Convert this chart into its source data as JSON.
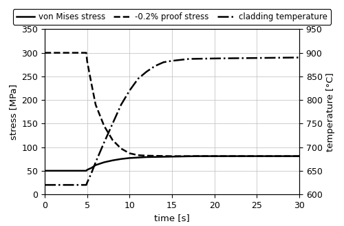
{
  "title": "",
  "xlabel": "time [s]",
  "ylabel_left": "stress [MPa]",
  "ylabel_right": "temperature [°C]",
  "xlim": [
    0,
    30
  ],
  "ylim_left": [
    0,
    350
  ],
  "ylim_right": [
    600,
    950
  ],
  "xticks": [
    0,
    5,
    10,
    15,
    20,
    25,
    30
  ],
  "yticks_left": [
    0,
    50,
    100,
    150,
    200,
    250,
    300,
    350
  ],
  "yticks_right": [
    600,
    650,
    700,
    750,
    800,
    850,
    900,
    950
  ],
  "legend_labels": [
    "von Mises stress",
    "-0.2% proof stress",
    "cladding temperature"
  ],
  "von_mises_x": [
    0,
    4.9,
    5.0,
    5.5,
    6.0,
    7.0,
    8.0,
    9.0,
    10.0,
    12.0,
    15.0,
    18.0,
    20.0,
    25.0,
    30.0
  ],
  "von_mises_y": [
    50,
    50,
    52,
    56,
    62,
    68,
    72,
    75,
    77,
    79,
    80,
    81,
    81,
    81,
    81
  ],
  "proof_stress_x": [
    0,
    4.9,
    5.0,
    5.5,
    6.0,
    7.0,
    8.0,
    9.0,
    10.0,
    11.0,
    12.0,
    15.0,
    18.0,
    20.0,
    25.0,
    30.0
  ],
  "proof_stress_y": [
    300,
    300,
    282,
    235,
    190,
    145,
    115,
    97,
    87,
    83,
    82,
    81,
    81,
    81,
    81,
    81
  ],
  "clad_temp_x": [
    0,
    4.9,
    5.0,
    5.5,
    6.0,
    7.0,
    8.0,
    9.0,
    10.0,
    11.0,
    12.0,
    13.0,
    14.0,
    15.0,
    17.0,
    20.0,
    25.0,
    30.0
  ],
  "clad_temp_y": [
    620,
    620,
    625,
    645,
    668,
    710,
    750,
    790,
    820,
    845,
    860,
    872,
    880,
    883,
    887,
    888,
    889,
    890
  ],
  "line_color": "#000000",
  "background_color": "#ffffff",
  "grid_color": "#bbbbbb",
  "legend_linestyles": [
    "-",
    "--",
    "-."
  ],
  "linewidth": 1.8,
  "legend_fontsize": 8.5,
  "axis_fontsize": 9.5,
  "tick_fontsize": 9
}
